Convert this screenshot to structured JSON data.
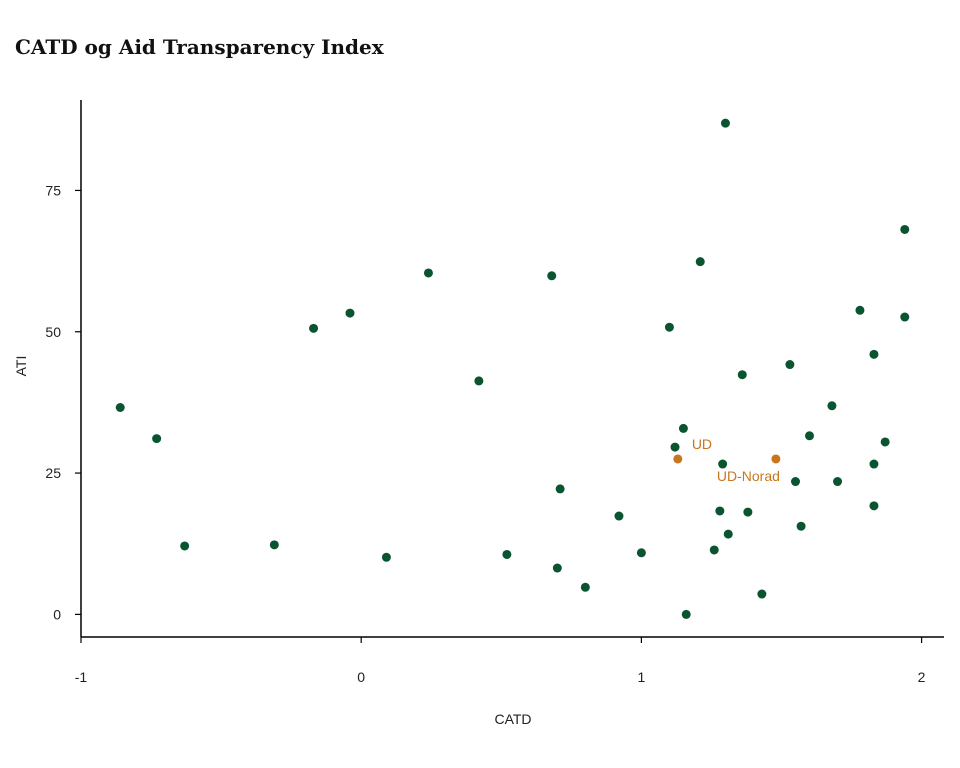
{
  "colors": {
    "default": "#0a5530",
    "highlight": "#c8761e",
    "axis": "#000000"
  },
  "chart_data": {
    "type": "scatter",
    "title": "CATD og Aid Transparency Index",
    "xlabel": "CATD",
    "ylabel": "ATI",
    "xlim": [
      -1.0,
      2.08
    ],
    "ylim": [
      -4,
      91
    ],
    "xticks": [
      -1,
      0,
      1,
      2
    ],
    "xtick_labels": [
      "-1",
      "0",
      "1",
      "2"
    ],
    "yticks": [
      0,
      25,
      50,
      75
    ],
    "ytick_labels": [
      "0",
      "25",
      "50",
      "75"
    ],
    "grid": false,
    "legend": "none",
    "series": [
      {
        "color": "#0a5530",
        "points": [
          {
            "x": -0.86,
            "y": 36.6
          },
          {
            "x": -0.73,
            "y": 31.1
          },
          {
            "x": -0.63,
            "y": 12.1
          },
          {
            "x": -0.31,
            "y": 12.3
          },
          {
            "x": -0.17,
            "y": 50.6
          },
          {
            "x": -0.04,
            "y": 53.3
          },
          {
            "x": 0.09,
            "y": 10.1
          },
          {
            "x": 0.24,
            "y": 60.4
          },
          {
            "x": 0.42,
            "y": 41.3
          },
          {
            "x": 0.52,
            "y": 10.6
          },
          {
            "x": 0.68,
            "y": 59.9
          },
          {
            "x": 0.7,
            "y": 8.2
          },
          {
            "x": 0.71,
            "y": 22.2
          },
          {
            "x": 0.8,
            "y": 4.8
          },
          {
            "x": 0.92,
            "y": 17.4
          },
          {
            "x": 1.0,
            "y": 10.9
          },
          {
            "x": 1.1,
            "y": 50.8
          },
          {
            "x": 1.12,
            "y": 29.6
          },
          {
            "x": 1.15,
            "y": 32.9
          },
          {
            "x": 1.16,
            "y": 0.0
          },
          {
            "x": 1.21,
            "y": 62.4
          },
          {
            "x": 1.26,
            "y": 11.4
          },
          {
            "x": 1.28,
            "y": 18.3
          },
          {
            "x": 1.29,
            "y": 26.6
          },
          {
            "x": 1.3,
            "y": 86.9
          },
          {
            "x": 1.31,
            "y": 14.2
          },
          {
            "x": 1.36,
            "y": 42.4
          },
          {
            "x": 1.38,
            "y": 18.1
          },
          {
            "x": 1.43,
            "y": 3.6
          },
          {
            "x": 1.53,
            "y": 44.2
          },
          {
            "x": 1.55,
            "y": 23.5
          },
          {
            "x": 1.57,
            "y": 15.6
          },
          {
            "x": 1.6,
            "y": 31.6
          },
          {
            "x": 1.68,
            "y": 36.9
          },
          {
            "x": 1.7,
            "y": 23.5
          },
          {
            "x": 1.78,
            "y": 53.8
          },
          {
            "x": 1.83,
            "y": 46.0
          },
          {
            "x": 1.83,
            "y": 26.6
          },
          {
            "x": 1.83,
            "y": 19.2
          },
          {
            "x": 1.87,
            "y": 30.5
          },
          {
            "x": 1.94,
            "y": 68.1
          },
          {
            "x": 1.94,
            "y": 52.6
          }
        ]
      },
      {
        "color": "#c8761e",
        "points": [
          {
            "x": 1.13,
            "y": 27.5,
            "label": "UD"
          },
          {
            "x": 1.48,
            "y": 27.5,
            "label": "UD-Norad"
          }
        ]
      }
    ]
  }
}
